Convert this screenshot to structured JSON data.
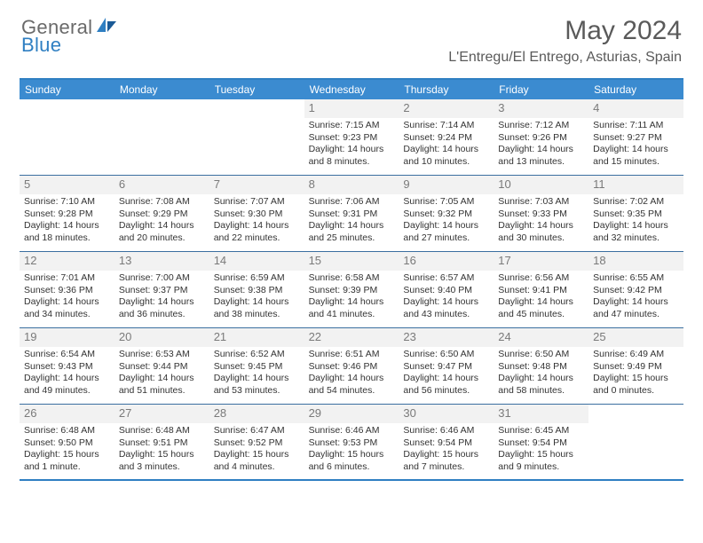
{
  "logo": {
    "line1": "General",
    "line2": "Blue"
  },
  "title": "May 2024",
  "location": "L'Entregu/El Entrego, Asturias, Spain",
  "colors": {
    "header_bar": "#3b8bd0",
    "border": "#2f7fc2",
    "daynum_bg": "#f2f2f2",
    "text": "#333333",
    "muted": "#6a6a6a"
  },
  "weekdays": [
    "Sunday",
    "Monday",
    "Tuesday",
    "Wednesday",
    "Thursday",
    "Friday",
    "Saturday"
  ],
  "weeks": [
    [
      null,
      null,
      null,
      {
        "n": "1",
        "sr": "7:15 AM",
        "ss": "9:23 PM",
        "dl": "14 hours and 8 minutes."
      },
      {
        "n": "2",
        "sr": "7:14 AM",
        "ss": "9:24 PM",
        "dl": "14 hours and 10 minutes."
      },
      {
        "n": "3",
        "sr": "7:12 AM",
        "ss": "9:26 PM",
        "dl": "14 hours and 13 minutes."
      },
      {
        "n": "4",
        "sr": "7:11 AM",
        "ss": "9:27 PM",
        "dl": "14 hours and 15 minutes."
      }
    ],
    [
      {
        "n": "5",
        "sr": "7:10 AM",
        "ss": "9:28 PM",
        "dl": "14 hours and 18 minutes."
      },
      {
        "n": "6",
        "sr": "7:08 AM",
        "ss": "9:29 PM",
        "dl": "14 hours and 20 minutes."
      },
      {
        "n": "7",
        "sr": "7:07 AM",
        "ss": "9:30 PM",
        "dl": "14 hours and 22 minutes."
      },
      {
        "n": "8",
        "sr": "7:06 AM",
        "ss": "9:31 PM",
        "dl": "14 hours and 25 minutes."
      },
      {
        "n": "9",
        "sr": "7:05 AM",
        "ss": "9:32 PM",
        "dl": "14 hours and 27 minutes."
      },
      {
        "n": "10",
        "sr": "7:03 AM",
        "ss": "9:33 PM",
        "dl": "14 hours and 30 minutes."
      },
      {
        "n": "11",
        "sr": "7:02 AM",
        "ss": "9:35 PM",
        "dl": "14 hours and 32 minutes."
      }
    ],
    [
      {
        "n": "12",
        "sr": "7:01 AM",
        "ss": "9:36 PM",
        "dl": "14 hours and 34 minutes."
      },
      {
        "n": "13",
        "sr": "7:00 AM",
        "ss": "9:37 PM",
        "dl": "14 hours and 36 minutes."
      },
      {
        "n": "14",
        "sr": "6:59 AM",
        "ss": "9:38 PM",
        "dl": "14 hours and 38 minutes."
      },
      {
        "n": "15",
        "sr": "6:58 AM",
        "ss": "9:39 PM",
        "dl": "14 hours and 41 minutes."
      },
      {
        "n": "16",
        "sr": "6:57 AM",
        "ss": "9:40 PM",
        "dl": "14 hours and 43 minutes."
      },
      {
        "n": "17",
        "sr": "6:56 AM",
        "ss": "9:41 PM",
        "dl": "14 hours and 45 minutes."
      },
      {
        "n": "18",
        "sr": "6:55 AM",
        "ss": "9:42 PM",
        "dl": "14 hours and 47 minutes."
      }
    ],
    [
      {
        "n": "19",
        "sr": "6:54 AM",
        "ss": "9:43 PM",
        "dl": "14 hours and 49 minutes."
      },
      {
        "n": "20",
        "sr": "6:53 AM",
        "ss": "9:44 PM",
        "dl": "14 hours and 51 minutes."
      },
      {
        "n": "21",
        "sr": "6:52 AM",
        "ss": "9:45 PM",
        "dl": "14 hours and 53 minutes."
      },
      {
        "n": "22",
        "sr": "6:51 AM",
        "ss": "9:46 PM",
        "dl": "14 hours and 54 minutes."
      },
      {
        "n": "23",
        "sr": "6:50 AM",
        "ss": "9:47 PM",
        "dl": "14 hours and 56 minutes."
      },
      {
        "n": "24",
        "sr": "6:50 AM",
        "ss": "9:48 PM",
        "dl": "14 hours and 58 minutes."
      },
      {
        "n": "25",
        "sr": "6:49 AM",
        "ss": "9:49 PM",
        "dl": "15 hours and 0 minutes."
      }
    ],
    [
      {
        "n": "26",
        "sr": "6:48 AM",
        "ss": "9:50 PM",
        "dl": "15 hours and 1 minute."
      },
      {
        "n": "27",
        "sr": "6:48 AM",
        "ss": "9:51 PM",
        "dl": "15 hours and 3 minutes."
      },
      {
        "n": "28",
        "sr": "6:47 AM",
        "ss": "9:52 PM",
        "dl": "15 hours and 4 minutes."
      },
      {
        "n": "29",
        "sr": "6:46 AM",
        "ss": "9:53 PM",
        "dl": "15 hours and 6 minutes."
      },
      {
        "n": "30",
        "sr": "6:46 AM",
        "ss": "9:54 PM",
        "dl": "15 hours and 7 minutes."
      },
      {
        "n": "31",
        "sr": "6:45 AM",
        "ss": "9:54 PM",
        "dl": "15 hours and 9 minutes."
      },
      null
    ]
  ],
  "labels": {
    "sunrise": "Sunrise:",
    "sunset": "Sunset:",
    "daylight": "Daylight:"
  }
}
